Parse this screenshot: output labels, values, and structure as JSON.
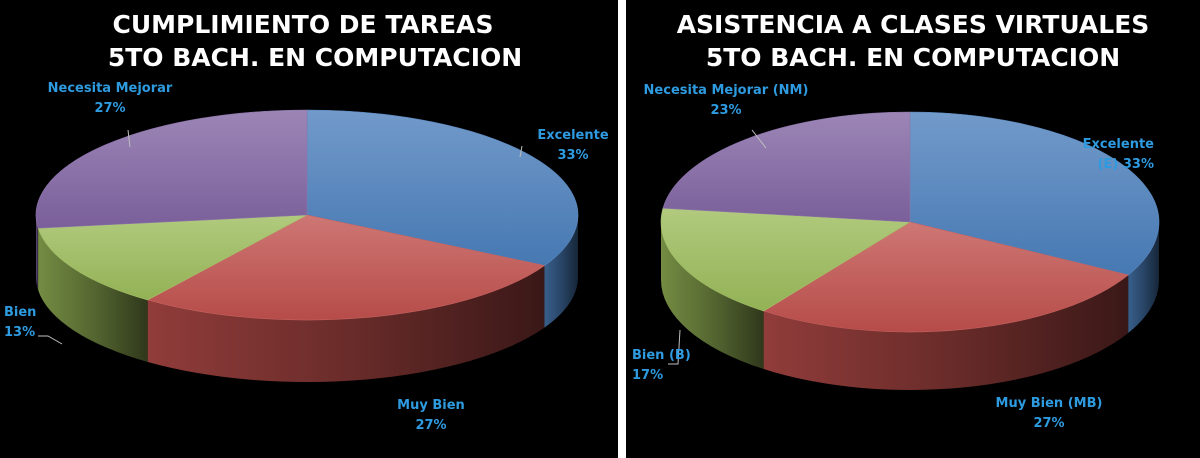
{
  "colors": {
    "background": "#000000",
    "divider": "#ffffff",
    "label": "#2e9be0",
    "leader": "#bfbfbf"
  },
  "chart_data": [
    {
      "type": "pie",
      "title": [
        "CUMPLIMIENTO DE TAREAS",
        "5TO BACH. EN COMPUTACION"
      ],
      "slices": [
        {
          "label": "Excelente",
          "percent_label": "33%",
          "value": 33,
          "color": "#4a7ebb"
        },
        {
          "label": "Muy Bien",
          "percent_label": "27%",
          "value": 27,
          "color": "#c0504d"
        },
        {
          "label": "Bien",
          "percent_label": "13%",
          "value": 13,
          "color": "#9bbb59"
        },
        {
          "label": "Necesita Mejorar",
          "percent_label": "27%",
          "value": 27,
          "color": "#8064a2"
        }
      ]
    },
    {
      "type": "pie",
      "title": [
        "ASISTENCIA A CLASES VIRTUALES",
        "5TO BACH. EN COMPUTACION"
      ],
      "slices": [
        {
          "label": "Excelente",
          "label_line2": "(E)",
          "percent_label": "33%",
          "value": 33,
          "color": "#4a7ebb"
        },
        {
          "label": "Muy Bien (MB)",
          "percent_label": "27%",
          "value": 27,
          "color": "#c0504d"
        },
        {
          "label": "Bien (B)",
          "percent_label": "17%",
          "value": 17,
          "color": "#9bbb59"
        },
        {
          "label": "Necesita Mejorar (NM)",
          "percent_label": "23%",
          "value": 23,
          "color": "#8064a2"
        }
      ]
    }
  ]
}
